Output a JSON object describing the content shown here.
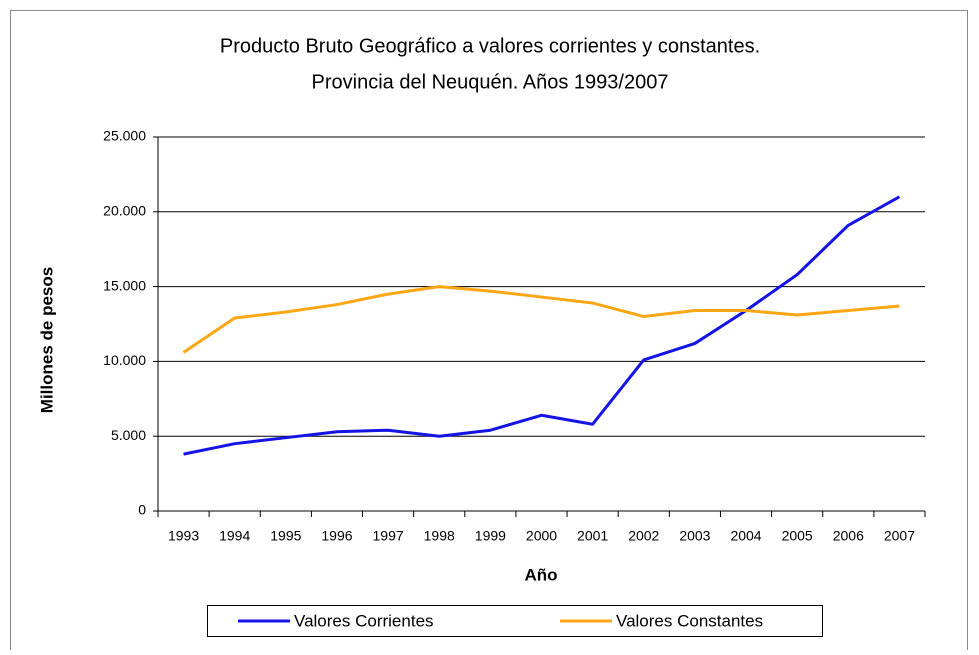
{
  "chart_data": {
    "type": "line",
    "title": [
      "Producto Bruto Geográfico a valores corrientes y constantes.",
      "Provincia del Neuquén. Años 1993/2007"
    ],
    "x_label": "Año",
    "y_label": "Millones de pesos",
    "categories": [
      "1993",
      "1994",
      "1995",
      "1996",
      "1997",
      "1998",
      "1999",
      "2000",
      "2001",
      "2002",
      "2003",
      "2004",
      "2005",
      "2006",
      "2007"
    ],
    "series": [
      {
        "name": "Valores Corrientes",
        "color": "#1414e6",
        "values": [
          3800,
          4500,
          4900,
          5300,
          5400,
          5000,
          5400,
          6400,
          5800,
          10100,
          11200,
          13400,
          15800,
          19100,
          21000
        ]
      },
      {
        "name": "Valores Constantes",
        "color": "#ffa614",
        "values": [
          10600,
          12900,
          13300,
          13800,
          14500,
          15000,
          14700,
          14300,
          13900,
          13000,
          13400,
          13400,
          13100,
          13400,
          13700
        ]
      }
    ],
    "ylim": [
      0,
      25000
    ],
    "yticks": [
      0,
      {
        "value": 5000,
        "label": "5.000"
      },
      {
        "value": 10000,
        "label": "10.000"
      },
      {
        "value": 15000,
        "label": "15.000"
      },
      {
        "value": 20000,
        "label": "20.000"
      },
      {
        "value": 25000,
        "label": "25.000"
      }
    ],
    "grid": true,
    "legend": "bottom"
  }
}
